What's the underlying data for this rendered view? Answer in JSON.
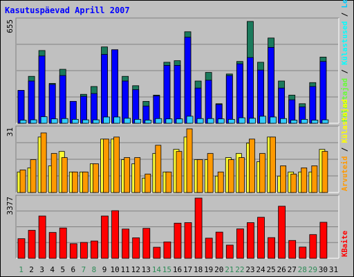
{
  "chart_data": {
    "title": "Kasutuspäevad Aprill 2007",
    "type": "bar",
    "categories": [
      "1",
      "2",
      "3",
      "4",
      "5",
      "6",
      "7",
      "8",
      "9",
      "10",
      "11",
      "12",
      "13",
      "14",
      "15",
      "16",
      "17",
      "18",
      "19",
      "20",
      "21",
      "22",
      "23",
      "24",
      "25",
      "26",
      "27",
      "28",
      "29",
      "30",
      "31"
    ],
    "weekend_days": [
      "1",
      "7",
      "8",
      "14",
      "15",
      "21",
      "22",
      "28",
      "29"
    ],
    "panels": [
      {
        "id": "top",
        "ymax_label": "655",
        "ylim": [
          0,
          655
        ],
        "ylabel_parts": [
          {
            "text": "Külastajad",
            "color": "#66ff33"
          },
          {
            "text": " / ",
            "color": "#000000"
          },
          {
            "text": "Külastused",
            "color": "#00ffff"
          },
          {
            "text": " / ",
            "color": "#000000"
          },
          {
            "text": "Lehekülgi",
            "color": "#00ccff"
          },
          {
            "text": " / ",
            "color": "#000000"
          },
          {
            "text": "Faile",
            "color": "#0000ff"
          },
          {
            "text": " / ",
            "color": "#000000"
          },
          {
            "text": "Pöördumisi",
            "color": "#218a6b"
          }
        ],
        "series": [
          {
            "name": "Pöördumisi",
            "color": "#1b7a5c",
            "values": [
              210,
              300,
              465,
              255,
              345,
              140,
              185,
              235,
              488,
              470,
              300,
              240,
              140,
              180,
              390,
              400,
              585,
              270,
              325,
              125,
              315,
              395,
              651,
              390,
              545,
              270,
              180,
              125,
              260,
              423,
              0
            ]
          },
          {
            "name": "Faile",
            "color": "#0000ff",
            "values": [
              210,
              270,
              430,
              248,
              305,
              140,
              172,
              190,
              440,
              470,
              270,
              215,
              110,
              175,
              370,
              370,
              550,
              225,
              275,
              120,
              305,
              380,
              420,
              340,
              485,
              225,
              150,
              105,
              235,
              395,
              0
            ]
          },
          {
            "name": "Lehekülgi",
            "color": "#33ccff",
            "values": [
              20,
              22,
              42,
              28,
              30,
              25,
              22,
              22,
              40,
              40,
              32,
              25,
              20,
              30,
              28,
              28,
              45,
              30,
              30,
              28,
              25,
              35,
              32,
              45,
              40,
              30,
              20,
              25,
              20,
              22,
              0
            ]
          }
        ]
      },
      {
        "id": "middle",
        "ymax_label": "31",
        "ylim": [
          0,
          31
        ],
        "ylabel_parts": [
          {
            "text": "Arvuteid",
            "color": "#ff9900"
          },
          {
            "text": " / ",
            "color": "#000000"
          },
          {
            "text": "Külastajad",
            "color": "#ffff00"
          }
        ],
        "series": [
          {
            "name": "Külastajad",
            "color": "#ffff33",
            "values": [
              10,
              12,
              27,
              13,
              20,
              10,
              10,
              14,
              26,
              26,
              16,
              14,
              7,
              19,
              10,
              21,
              27,
              16,
              16,
              8,
              17,
              19,
              24,
              15,
              27,
              8,
              10,
              10,
              10,
              21,
              0
            ]
          },
          {
            "name": "Arvuteid",
            "color": "#ff9900",
            "values": [
              11,
              16,
              29,
              19,
              17,
              10,
              10,
              14,
              26,
              27,
              17,
              17,
              9,
              23,
              10,
              20,
              31,
              16,
              19,
              10,
              16,
              17,
              26,
              19,
              27,
              13,
              9,
              12,
              13,
              20,
              0
            ]
          }
        ]
      },
      {
        "id": "bottom",
        "ymax_label": "3377",
        "ylim": [
          0,
          3377
        ],
        "ylabel_parts": [
          {
            "text": "KBaite",
            "color": "#ff0000"
          }
        ],
        "series": [
          {
            "name": "KBaite",
            "color": "#ff0000",
            "values": [
              1100,
              1570,
              2370,
              1450,
              1700,
              820,
              890,
              970,
              2370,
              2670,
              1640,
              1150,
              1680,
              620,
              920,
              1970,
              2000,
              3377,
              1130,
              1470,
              740,
              1650,
              2000,
              2300,
              1160,
              2920,
              1000,
              630,
              1330,
              2020,
              0
            ]
          }
        ]
      }
    ]
  }
}
